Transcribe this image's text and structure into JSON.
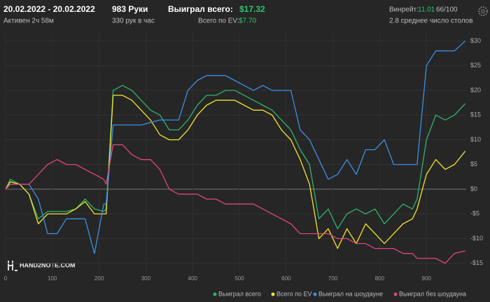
{
  "header": {
    "period": "20.02.2022 - 20.02.2022",
    "active": "Активен 2ч 58м",
    "hands": "983 Руки",
    "hands_per_hour": "330 рук в час",
    "won_label": "Выиграл всего:",
    "won_value": "$17.32",
    "ev_label": "Всего по EV:",
    "ev_value": "$7.70",
    "winrate_label": "Винрейт:",
    "winrate_value": "11.01",
    "winrate_unit": "66/100",
    "tables": "2.8 среднее число столов"
  },
  "watermark": "HAND2NOTE.COM",
  "chart_data": {
    "type": "line",
    "x": [
      0,
      10,
      30,
      50,
      70,
      90,
      110,
      130,
      150,
      170,
      190,
      210,
      215,
      230,
      250,
      270,
      290,
      310,
      330,
      350,
      370,
      390,
      410,
      430,
      450,
      470,
      490,
      510,
      530,
      550,
      570,
      590,
      610,
      630,
      650,
      670,
      690,
      710,
      730,
      750,
      770,
      790,
      810,
      830,
      850,
      870,
      880,
      900,
      920,
      940,
      960,
      983
    ],
    "series": [
      {
        "name": "Выиграл всего",
        "color": "#2fb36b",
        "values": [
          0,
          2,
          1,
          -1,
          -6,
          -4.5,
          -4.5,
          -4.5,
          -4,
          -2,
          -4,
          -4.5,
          -4,
          20,
          21,
          20,
          18,
          16,
          15,
          12,
          12,
          14,
          17,
          19,
          19,
          20,
          20,
          19,
          18,
          17,
          16,
          14,
          12,
          8,
          5,
          -6,
          -4,
          -8,
          -5,
          -4,
          -5,
          -4,
          -7,
          -5,
          -3,
          -4,
          -2,
          10,
          15,
          14,
          15,
          17.32
        ]
      },
      {
        "name": "Всего по EV",
        "color": "#f0e52c",
        "values": [
          0,
          1.5,
          1,
          -1,
          -7,
          -5,
          -5,
          -5,
          -4,
          -2.5,
          -5,
          -5,
          -5,
          19,
          19,
          18,
          16,
          14,
          11,
          10,
          10,
          12,
          15,
          17,
          18,
          18,
          18,
          17,
          16,
          16,
          15,
          12,
          10,
          6,
          1,
          -10,
          -8,
          -12,
          -8,
          -11,
          -7,
          -9,
          -11,
          -9,
          -7,
          -6,
          -4,
          3,
          6,
          4,
          5,
          7.7
        ]
      },
      {
        "name": "Выиграл на шоудауне",
        "color": "#3d8fe3",
        "values": [
          0,
          1,
          1,
          1,
          -2,
          -9,
          -9,
          -6,
          -6,
          -6,
          -13,
          -3,
          -3,
          13,
          13,
          13,
          13,
          13.5,
          14,
          14,
          14,
          20,
          22,
          23,
          23,
          23,
          22,
          21,
          20,
          21,
          20,
          20,
          20,
          12,
          10,
          6,
          2,
          3,
          6,
          3,
          8,
          8,
          10,
          5,
          5,
          5,
          5,
          25,
          28,
          28,
          28,
          30
        ]
      },
      {
        "name": "Выиграл без шоудауна",
        "color": "#e0457b",
        "values": [
          0,
          1,
          1,
          1,
          3,
          5,
          6,
          5,
          5,
          4,
          3,
          2,
          1,
          9,
          9,
          7,
          6,
          6,
          4,
          0,
          -1,
          -1,
          -1,
          -2,
          -2,
          -3,
          -3,
          -3,
          -3,
          -4,
          -5,
          -6,
          -7,
          -9,
          -9,
          -9,
          -9,
          -10,
          -10,
          -11,
          -11,
          -12,
          -12,
          -12,
          -13,
          -13,
          -14,
          -14,
          -14,
          -15,
          -13,
          -12.5
        ]
      }
    ],
    "xlim": [
      0,
      985
    ],
    "ylim": [
      -17,
      31
    ],
    "xticks": [
      0,
      100,
      200,
      300,
      400,
      500,
      600,
      700,
      800,
      900
    ],
    "yticks": [
      {
        "value": -15,
        "label": "-$15"
      },
      {
        "value": -10,
        "label": "-$10"
      },
      {
        "value": -5,
        "label": "-$5"
      },
      {
        "value": 0,
        "label": "$0"
      },
      {
        "value": 5,
        "label": "$5"
      },
      {
        "value": 10,
        "label": "$10"
      },
      {
        "value": 15,
        "label": "$15"
      },
      {
        "value": 20,
        "label": "$20"
      },
      {
        "value": 25,
        "label": "$25"
      },
      {
        "value": 30,
        "label": "$30"
      }
    ],
    "grid": true,
    "legend": "bottom-right"
  }
}
